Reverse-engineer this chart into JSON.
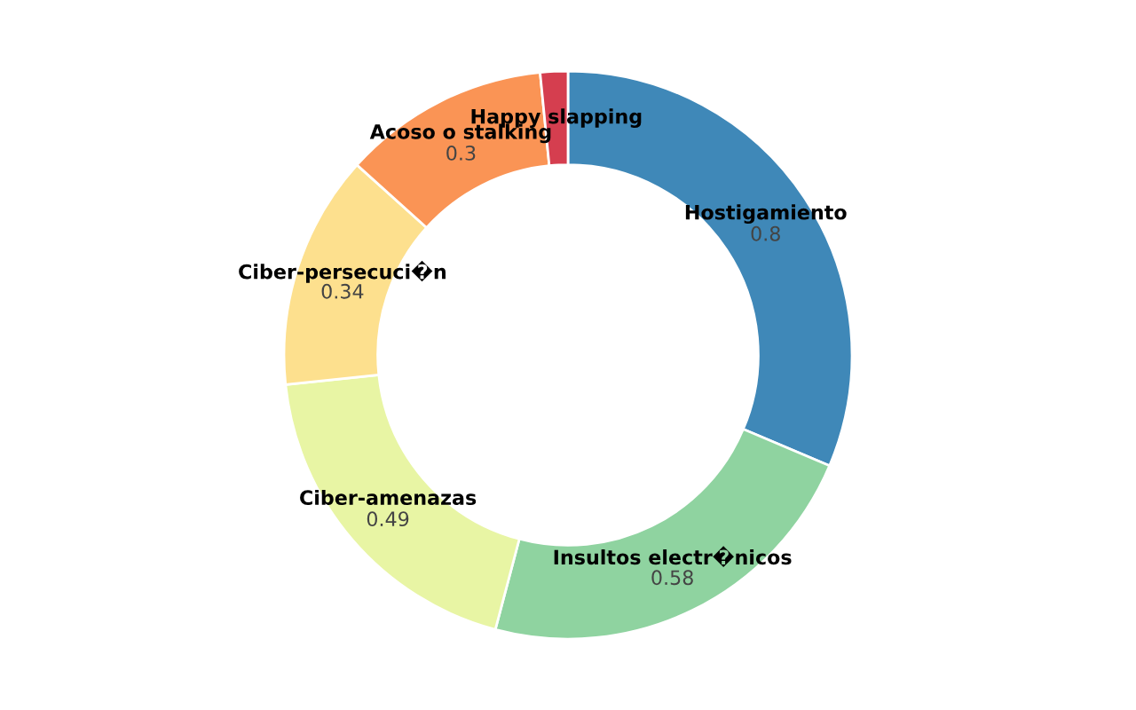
{
  "chart_data": {
    "type": "donut",
    "categories": [
      "Hostigamiento",
      "Insultos electr�nicos",
      "Ciber-amenazas",
      "Ciber-persecuci�n",
      "Acoso o stalking",
      "Happy slapping"
    ],
    "values": [
      0.8,
      0.58,
      0.49,
      0.34,
      0.3,
      0.04
    ],
    "value_labels": [
      "0.8",
      "0.58",
      "0.49",
      "0.34",
      "0.3",
      null
    ],
    "colors": [
      "#3f88b8",
      "#8fd3a0",
      "#e8f5a4",
      "#fde08e",
      "#fa9455",
      "#d53e4f"
    ],
    "legend": false
  }
}
